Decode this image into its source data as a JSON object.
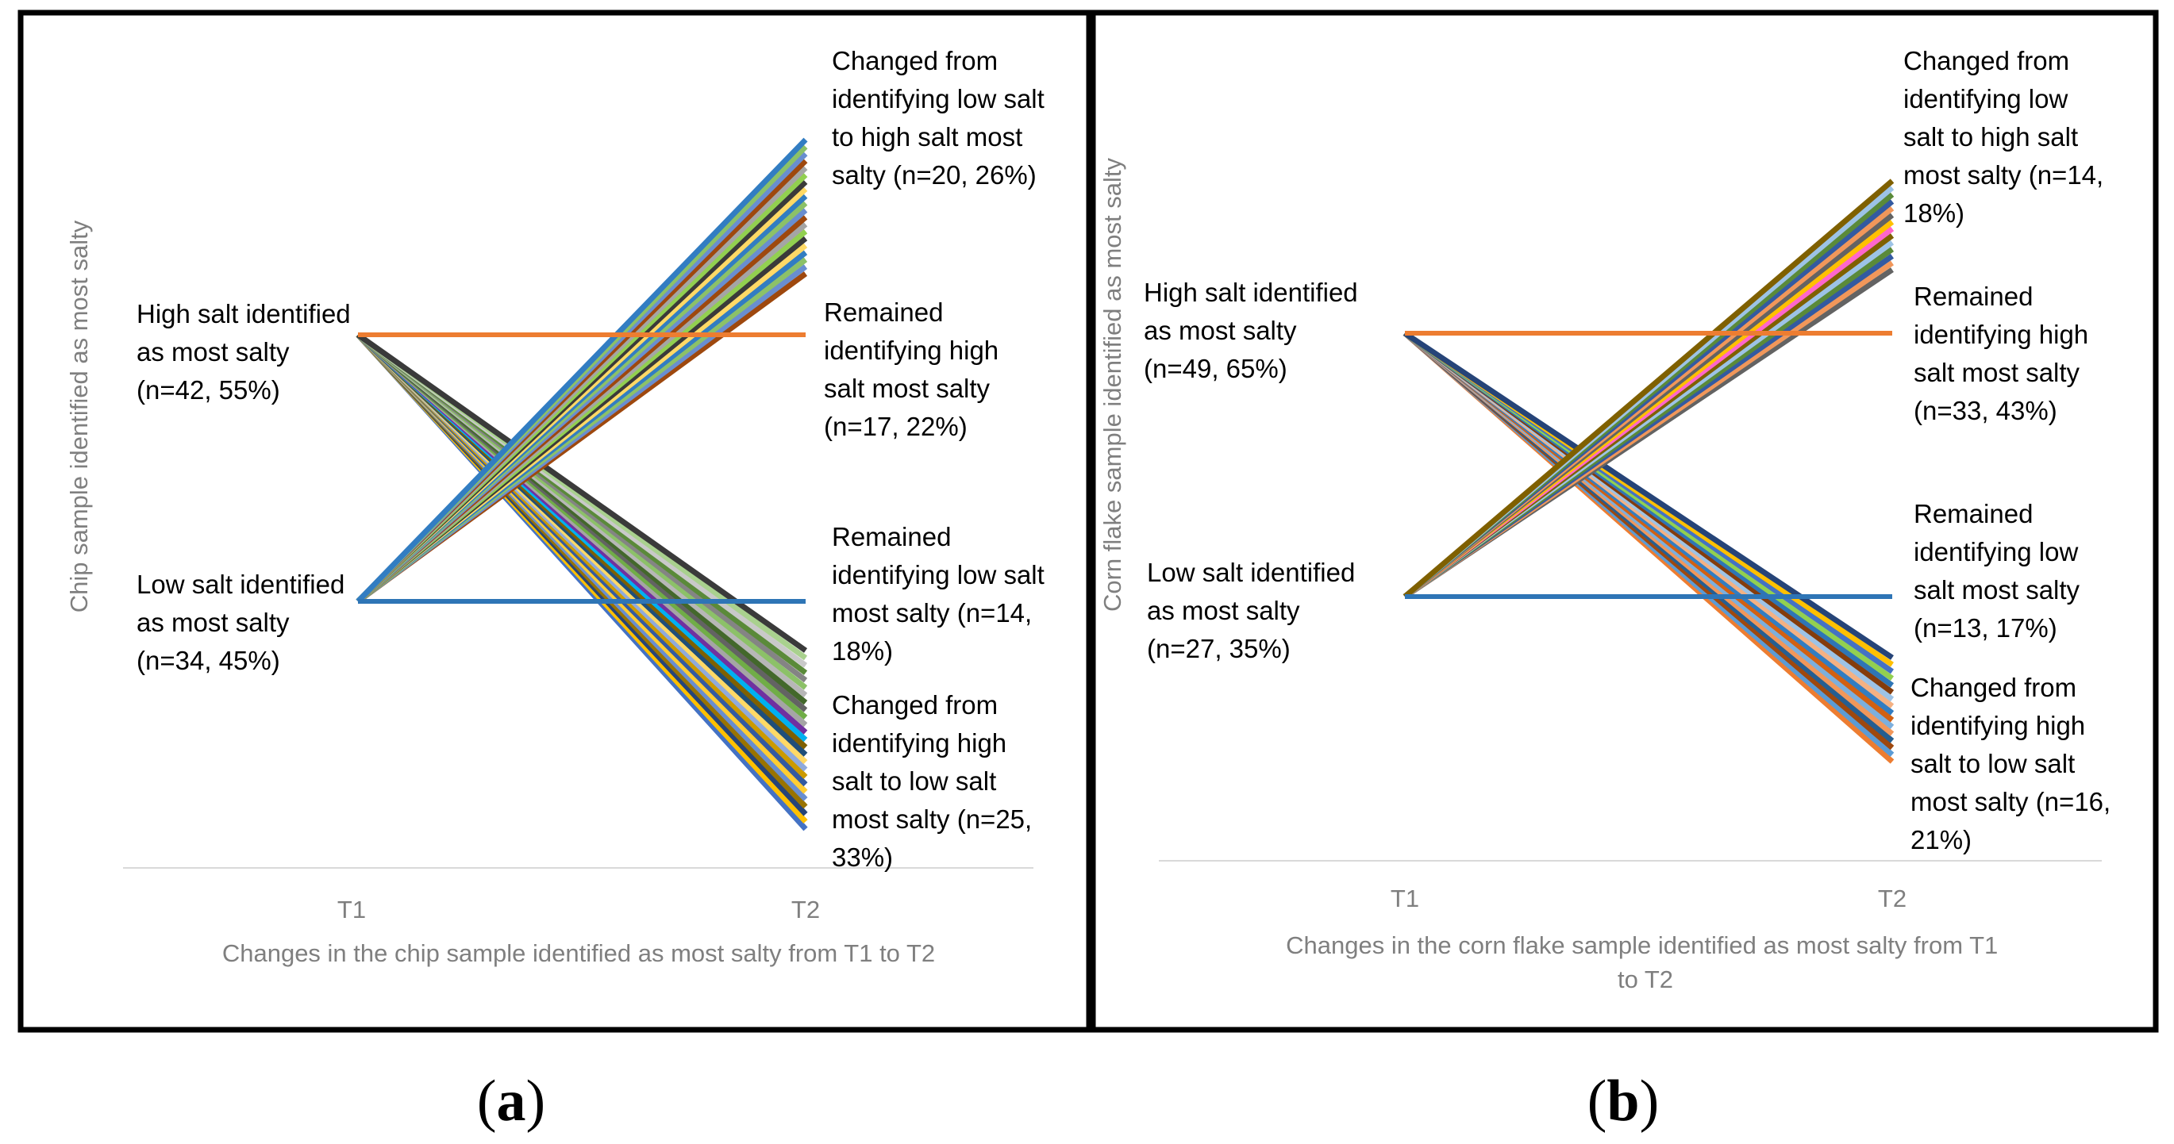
{
  "palette": [
    "#4472c4",
    "#ed7d31",
    "#a5a5a5",
    "#ffc000",
    "#5b9bd5",
    "#70ad47",
    "#264478",
    "#9e480e",
    "#636363",
    "#997300",
    "#255e91",
    "#43682b",
    "#698ed0",
    "#f1975a",
    "#b7b7b7",
    "#ffcd33",
    "#7cafdd",
    "#8cc168",
    "#335aa1",
    "#d26012",
    "#848484",
    "#cc9a00",
    "#327dc2",
    "#5a8a39",
    "#8faadc",
    "#f4b183",
    "#c9c9c9",
    "#ffd966",
    "#9dc3e6",
    "#a9d18e",
    "#1f4e79",
    "#843c0c",
    "#3a3a3a",
    "#7f6000",
    "#2e75b6",
    "#548235",
    "#00b0f0",
    "#92d050",
    "#ff66cc",
    "#7030a0"
  ],
  "chart_data": [
    {
      "type": "slope",
      "panel": "a",
      "caption": "a",
      "categories": [
        "T1",
        "T2"
      ],
      "xlabel": "Changes in the chip sample identified as most salty from T1 to T2",
      "ylabel": "Chip sample identified as most salty",
      "left_labels": {
        "high": [
          "High salt identified",
          "as most salty",
          "(n=42, 55%)"
        ],
        "low": [
          "Low salt identified",
          "as most salty",
          "(n=34, 45%)"
        ]
      },
      "right_labels": {
        "changed_low_to_high": [
          "Changed from",
          "identifying low salt",
          "to high salt most",
          "salty (n=20, 26%)"
        ],
        "remained_high": [
          "Remained",
          "identifying high",
          "salt most salty",
          "(n=17, 22%)"
        ],
        "remained_low": [
          "Remained",
          "identifying low salt",
          "most salty (n=14,",
          "18%)"
        ],
        "changed_high_to_low": [
          "Changed from",
          "identifying high",
          "salt to low salt",
          "most salty (n=25,",
          "33%)"
        ]
      },
      "groups": {
        "changed_low_to_high": 20,
        "remained_high": 17,
        "remained_low": 14,
        "changed_high_to_low": 25
      },
      "remained_high_color": "#ed7d31",
      "remained_low_color": "#2e75b6"
    },
    {
      "type": "slope",
      "panel": "b",
      "caption": "b",
      "categories": [
        "T1",
        "T2"
      ],
      "xlabel": [
        "Changes in the corn flake sample identified as most salty from T1",
        "to T2"
      ],
      "ylabel": "Corn flake sample identified as most salty",
      "left_labels": {
        "high": [
          "High salt identified",
          "as most salty",
          "(n=49, 65%)"
        ],
        "low": [
          "Low salt identified",
          "as most salty",
          "(n=27, 35%)"
        ]
      },
      "right_labels": {
        "changed_low_to_high": [
          "Changed from",
          "identifying low",
          "salt to high salt",
          "most salty (n=14,",
          "18%)"
        ],
        "remained_high": [
          "Remained",
          "identifying high",
          "salt most salty",
          "(n=33, 43%)"
        ],
        "remained_low": [
          "Remained",
          "identifying low",
          "salt most salty",
          "(n=13, 17%)"
        ],
        "changed_high_to_low": [
          "Changed from",
          "identifying high",
          "salt to low salt",
          "most salty (n=16,",
          "21%)"
        ]
      },
      "groups": {
        "changed_low_to_high": 14,
        "remained_high": 33,
        "remained_low": 13,
        "changed_high_to_low": 16
      },
      "remained_high_color": "#ed7d31",
      "remained_low_color": "#2e75b6"
    }
  ]
}
